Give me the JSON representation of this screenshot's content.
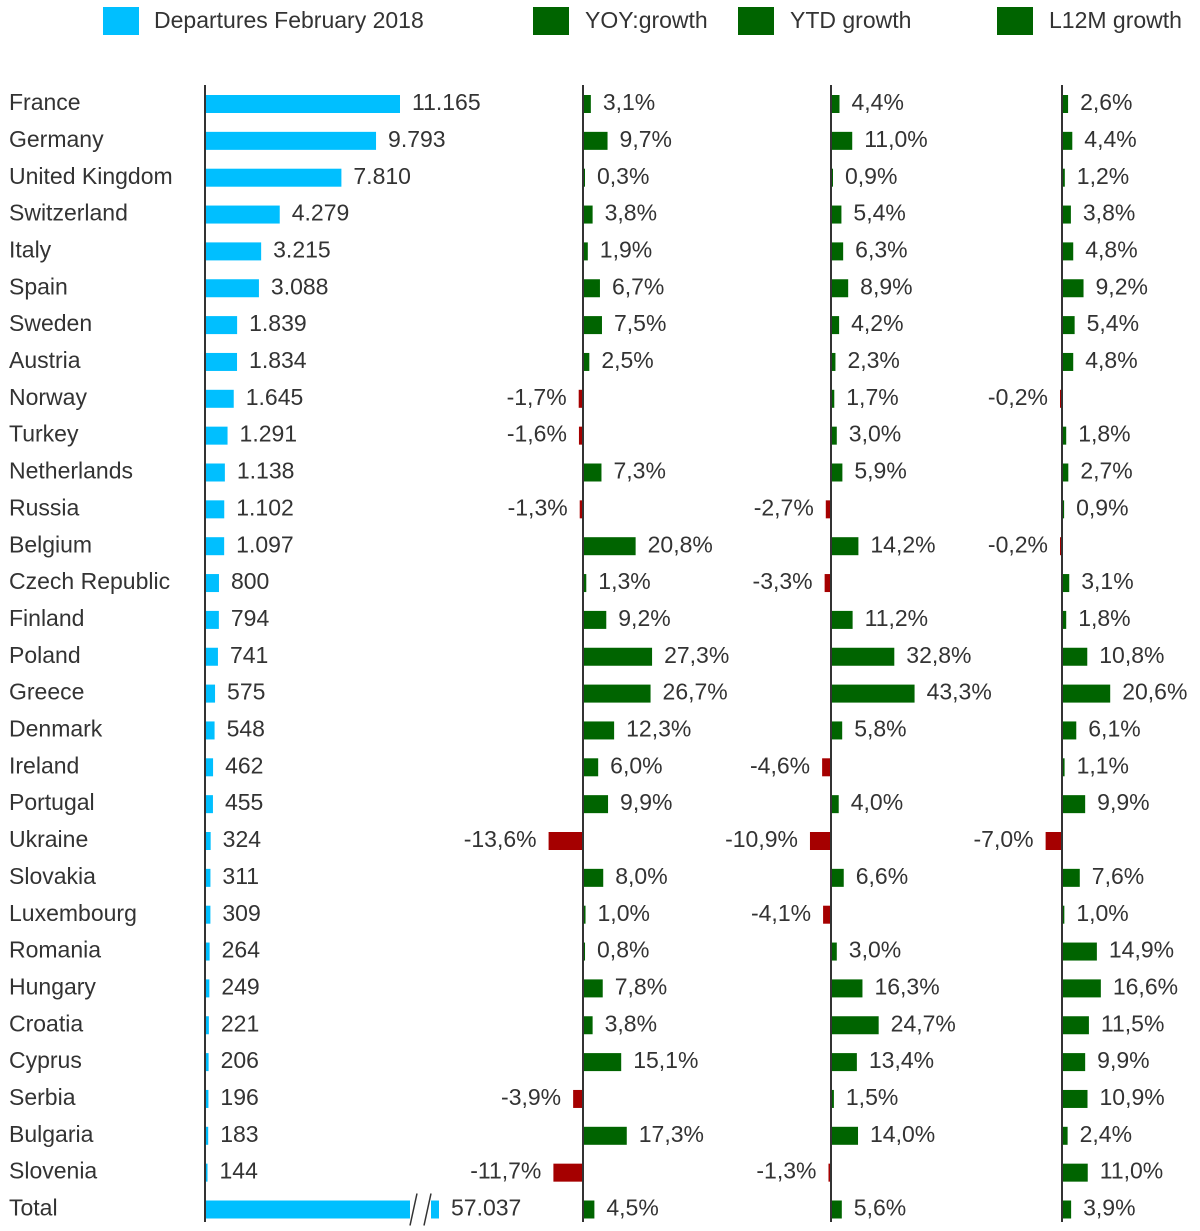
{
  "chart_data": {
    "type": "bar",
    "legend_position": "top",
    "categories": [
      "France",
      "Germany",
      "United Kingdom",
      "Switzerland",
      "Italy",
      "Spain",
      "Sweden",
      "Austria",
      "Norway",
      "Turkey",
      "Netherlands",
      "Russia",
      "Belgium",
      "Czech Republic",
      "Finland",
      "Poland",
      "Greece",
      "Denmark",
      "Ireland",
      "Portugal",
      "Ukraine",
      "Slovakia",
      "Luxembourg",
      "Romania",
      "Hungary",
      "Croatia",
      "Cyprus",
      "Serbia",
      "Bulgaria",
      "Slovenia",
      "Total"
    ],
    "colors": {
      "departures": "#00BFFF",
      "positive": "#006400",
      "negative": "#A50000"
    },
    "series": [
      {
        "name": "Departures February 2018",
        "values": [
          11165,
          9793,
          7810,
          4279,
          3215,
          3088,
          1839,
          1834,
          1645,
          1291,
          1138,
          1102,
          1097,
          800,
          794,
          741,
          575,
          548,
          462,
          455,
          324,
          311,
          309,
          264,
          249,
          221,
          206,
          196,
          183,
          144,
          57037
        ],
        "labels": [
          "11.165",
          "9.793",
          "7.810",
          "4.279",
          "3.215",
          "3.088",
          "1.839",
          "1.834",
          "1.645",
          "1.291",
          "1.138",
          "1.102",
          "1.097",
          "800",
          "794",
          "741",
          "575",
          "548",
          "462",
          "455",
          "324",
          "311",
          "309",
          "264",
          "249",
          "221",
          "206",
          "196",
          "183",
          "144",
          "57.037"
        ],
        "axis_break_on": "Total"
      },
      {
        "name": "YOY:growth",
        "values": [
          3.1,
          9.7,
          0.3,
          3.8,
          1.9,
          6.7,
          7.5,
          2.5,
          -1.7,
          -1.6,
          7.3,
          -1.3,
          20.8,
          1.3,
          9.2,
          27.3,
          26.7,
          12.3,
          6.0,
          9.9,
          -13.6,
          8.0,
          1.0,
          0.8,
          7.8,
          3.8,
          15.1,
          -3.9,
          17.3,
          -11.7,
          4.5
        ],
        "labels": [
          "3,1%",
          "9,7%",
          "0,3%",
          "3,8%",
          "1,9%",
          "6,7%",
          "7,5%",
          "2,5%",
          "-1,7%",
          "-1,6%",
          "7,3%",
          "-1,3%",
          "20,8%",
          "1,3%",
          "9,2%",
          "27,3%",
          "26,7%",
          "12,3%",
          "6,0%",
          "9,9%",
          "-13,6%",
          "8,0%",
          "1,0%",
          "0,8%",
          "7,8%",
          "3,8%",
          "15,1%",
          "-3,9%",
          "17,3%",
          "-11,7%",
          "4,5%"
        ]
      },
      {
        "name": "YTD growth",
        "values": [
          4.4,
          11.0,
          0.9,
          5.4,
          6.3,
          8.9,
          4.2,
          2.3,
          1.7,
          3.0,
          5.9,
          -2.7,
          14.2,
          -3.3,
          11.2,
          32.8,
          43.3,
          5.8,
          -4.6,
          4.0,
          -10.9,
          6.6,
          -4.1,
          3.0,
          16.3,
          24.7,
          13.4,
          1.5,
          14.0,
          -1.3,
          5.6
        ],
        "labels": [
          "4,4%",
          "11,0%",
          "0,9%",
          "5,4%",
          "6,3%",
          "8,9%",
          "4,2%",
          "2,3%",
          "1,7%",
          "3,0%",
          "5,9%",
          "-2,7%",
          "14,2%",
          "-3,3%",
          "11,2%",
          "32,8%",
          "43,3%",
          "5,8%",
          "-4,6%",
          "4,0%",
          "-10,9%",
          "6,6%",
          "-4,1%",
          "3,0%",
          "16,3%",
          "24,7%",
          "13,4%",
          "1,5%",
          "14,0%",
          "-1,3%",
          "5,6%"
        ]
      },
      {
        "name": "L12M growth",
        "values": [
          2.6,
          4.4,
          1.2,
          3.8,
          4.8,
          9.2,
          5.4,
          4.8,
          -0.2,
          1.8,
          2.7,
          0.9,
          -0.2,
          3.1,
          1.8,
          10.8,
          20.6,
          6.1,
          1.1,
          9.9,
          -7.0,
          7.6,
          1.0,
          14.9,
          16.6,
          11.5,
          9.9,
          10.9,
          2.4,
          11.0,
          3.9
        ],
        "labels": [
          "2,6%",
          "4,4%",
          "1,2%",
          "3,8%",
          "4,8%",
          "9,2%",
          "5,4%",
          "4,8%",
          "-0,2%",
          "1,8%",
          "2,7%",
          "0,9%",
          "-0,2%",
          "3,1%",
          "1,8%",
          "10,8%",
          "20,6%",
          "6,1%",
          "1,1%",
          "9,9%",
          "-7,0%",
          "7,6%",
          "1,0%",
          "14,9%",
          "16,6%",
          "11,5%",
          "9,9%",
          "10,9%",
          "2,4%",
          "11,0%",
          "3,9%"
        ]
      }
    ]
  }
}
